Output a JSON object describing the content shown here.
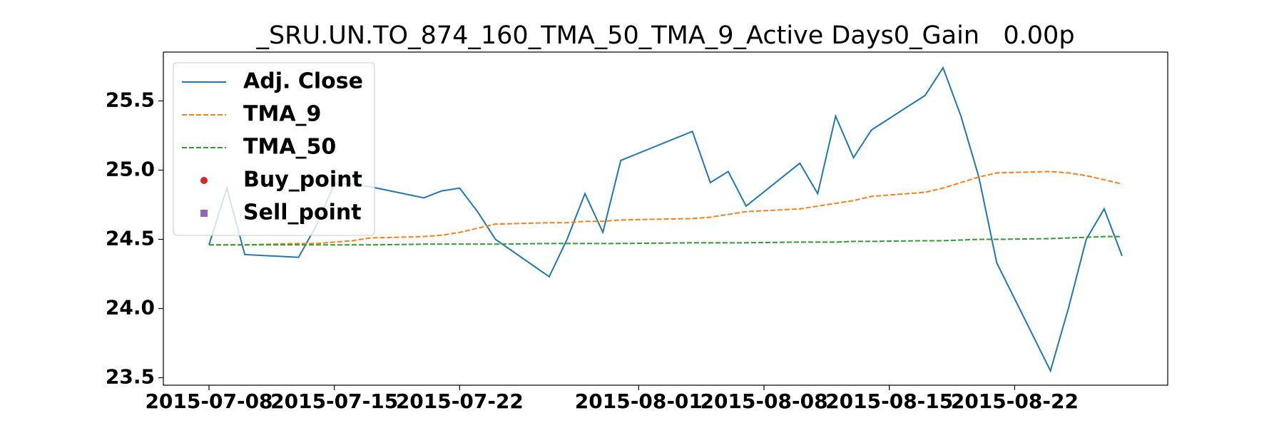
{
  "chart_data": {
    "type": "line",
    "title": "_SRU.UN.TO_874_160_TMA_50_TMA_9_Active Days0_Gain   0.00p",
    "x": [
      "2015-07-08",
      "2015-07-09",
      "2015-07-10",
      "2015-07-13",
      "2015-07-14",
      "2015-07-15",
      "2015-07-16",
      "2015-07-17",
      "2015-07-20",
      "2015-07-21",
      "2015-07-22",
      "2015-07-23",
      "2015-07-24",
      "2015-07-27",
      "2015-07-28",
      "2015-07-29",
      "2015-07-30",
      "2015-07-31",
      "2015-08-04",
      "2015-08-05",
      "2015-08-06",
      "2015-08-07",
      "2015-08-10",
      "2015-08-11",
      "2015-08-12",
      "2015-08-13",
      "2015-08-14",
      "2015-08-17",
      "2015-08-18",
      "2015-08-19",
      "2015-08-20",
      "2015-08-21",
      "2015-08-24",
      "2015-08-25",
      "2015-08-26",
      "2015-08-27",
      "2015-08-28"
    ],
    "series": [
      {
        "name": "Adj. Close",
        "color": "#1f77b4",
        "style": "solid",
        "values": [
          24.46,
          24.87,
          24.39,
          24.37,
          24.6,
          24.9,
          24.9,
          24.88,
          24.8,
          24.85,
          24.87,
          24.7,
          24.5,
          24.23,
          24.5,
          24.83,
          24.55,
          25.07,
          25.28,
          24.91,
          24.99,
          24.74,
          25.05,
          24.83,
          25.39,
          25.09,
          25.29,
          25.54,
          25.74,
          25.39,
          24.95,
          24.33,
          23.55,
          24.0,
          24.5,
          24.72,
          24.38
        ]
      },
      {
        "name": "TMA_9",
        "color": "#ff7f0e",
        "style": "dashed",
        "values": [
          24.46,
          24.46,
          24.46,
          24.47,
          24.47,
          24.48,
          24.49,
          24.51,
          24.52,
          24.53,
          24.55,
          24.58,
          24.61,
          24.62,
          24.62,
          24.63,
          24.63,
          24.64,
          24.65,
          24.66,
          24.68,
          24.7,
          24.72,
          24.74,
          24.76,
          24.78,
          24.81,
          24.84,
          24.87,
          24.91,
          24.95,
          24.98,
          24.99,
          24.98,
          24.96,
          24.93,
          24.9
        ]
      },
      {
        "name": "TMA_50",
        "color": "#2ca02c",
        "style": "dashed",
        "values": [
          24.46,
          24.46,
          24.46,
          24.46,
          24.46,
          24.46,
          24.46,
          24.46,
          24.465,
          24.465,
          24.465,
          24.465,
          24.465,
          24.47,
          24.47,
          24.47,
          24.47,
          24.47,
          24.475,
          24.475,
          24.475,
          24.475,
          24.48,
          24.48,
          24.48,
          24.485,
          24.485,
          24.49,
          24.49,
          24.495,
          24.5,
          24.5,
          24.505,
          24.51,
          24.515,
          24.52,
          24.52
        ]
      },
      {
        "name": "Buy_point",
        "color": "#d62728",
        "style": "marker-circle",
        "values": [
          null,
          null,
          null,
          null,
          null,
          null,
          null,
          null,
          null,
          null,
          null,
          null,
          null,
          null,
          null,
          null,
          null,
          null,
          null,
          null,
          null,
          null,
          null,
          null,
          null,
          null,
          null,
          null,
          null,
          null,
          null,
          null,
          null,
          null,
          null,
          null,
          null
        ]
      },
      {
        "name": "Sell_point",
        "color": "#9467bd",
        "style": "marker-square",
        "values": [
          null,
          null,
          null,
          null,
          null,
          null,
          null,
          null,
          null,
          null,
          null,
          null,
          null,
          null,
          null,
          null,
          null,
          null,
          null,
          null,
          null,
          null,
          null,
          null,
          null,
          null,
          null,
          null,
          null,
          null,
          null,
          null,
          null,
          null,
          null,
          null,
          null
        ]
      }
    ],
    "xlim": [
      "2015-07-05T10:48",
      "2015-08-30T13:12"
    ],
    "xticks": [
      "2015-07-08",
      "2015-07-15",
      "2015-07-22",
      "2015-08-01",
      "2015-08-08",
      "2015-08-15",
      "2015-08-22"
    ],
    "ylim": [
      23.446,
      25.853
    ],
    "yticks": [
      {
        "value": 23.5,
        "label": "23.5"
      },
      {
        "value": 24,
        "label": "24.0"
      },
      {
        "value": 24.5,
        "label": "24.5"
      },
      {
        "value": 25,
        "label": "25.0"
      },
      {
        "value": 25.5,
        "label": "25.5"
      }
    ],
    "grid": false,
    "legend": "upper left"
  }
}
